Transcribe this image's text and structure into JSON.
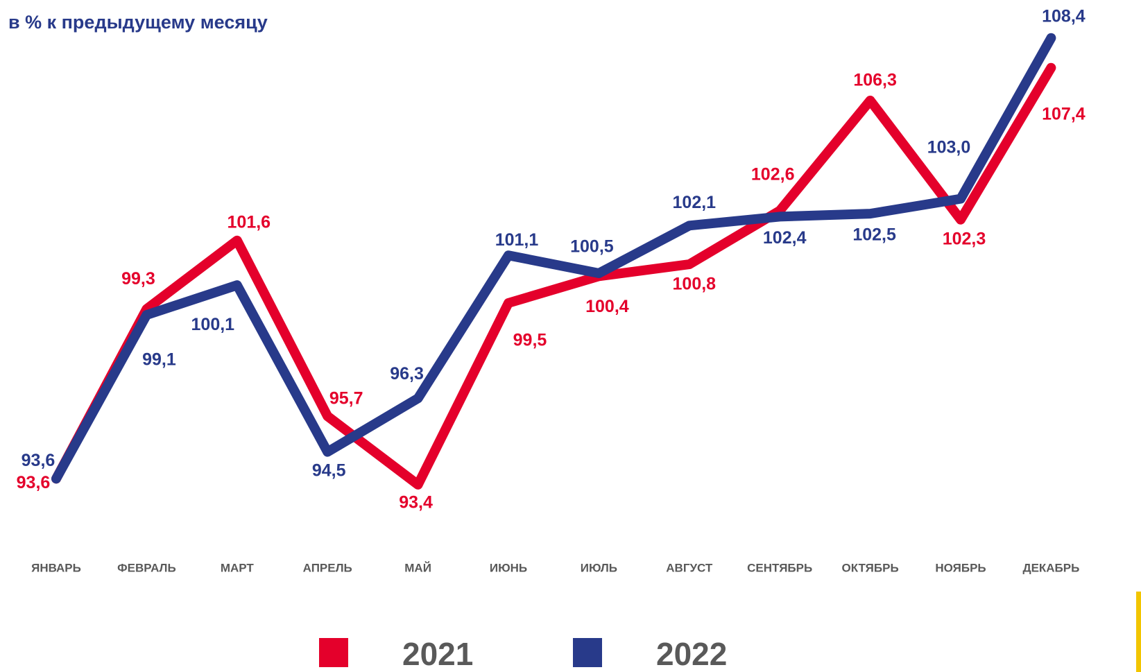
{
  "chart_data": {
    "type": "line",
    "title": "в % к предыдущему месяцу",
    "categories": [
      "ЯНВАРЬ",
      "ФЕВРАЛЬ",
      "МАРТ",
      "АПРЕЛЬ",
      "МАЙ",
      "ИЮНЬ",
      "ИЮЛЬ",
      "АВГУСТ",
      "СЕНТЯБРЬ",
      "ОКТЯБРЬ",
      "НОЯБРЬ",
      "ДЕКАБРЬ"
    ],
    "series": [
      {
        "name": "2021",
        "color": "#e4002b",
        "values": [
          93.6,
          99.3,
          101.6,
          95.7,
          93.4,
          99.5,
          100.4,
          100.8,
          102.6,
          106.3,
          102.3,
          107.4
        ],
        "value_labels": [
          "93,6",
          "99,3",
          "101,6",
          "95,7",
          "93,4",
          "99,5",
          "100,4",
          "100,8",
          "102,6",
          "106,3",
          "102,3",
          "107,4"
        ]
      },
      {
        "name": "2022",
        "color": "#283a8a",
        "values": [
          93.6,
          99.1,
          100.1,
          94.5,
          96.3,
          101.1,
          100.5,
          102.1,
          102.4,
          102.5,
          103.0,
          108.4
        ],
        "value_labels": [
          "93,6",
          "99,1",
          "100,1",
          "94,5",
          "96,3",
          "101,1",
          "100,5",
          "102,1",
          "102,4",
          "102,5",
          "103,0",
          "108,4"
        ]
      }
    ],
    "ylim": [
      92,
      109
    ],
    "grid": false
  }
}
